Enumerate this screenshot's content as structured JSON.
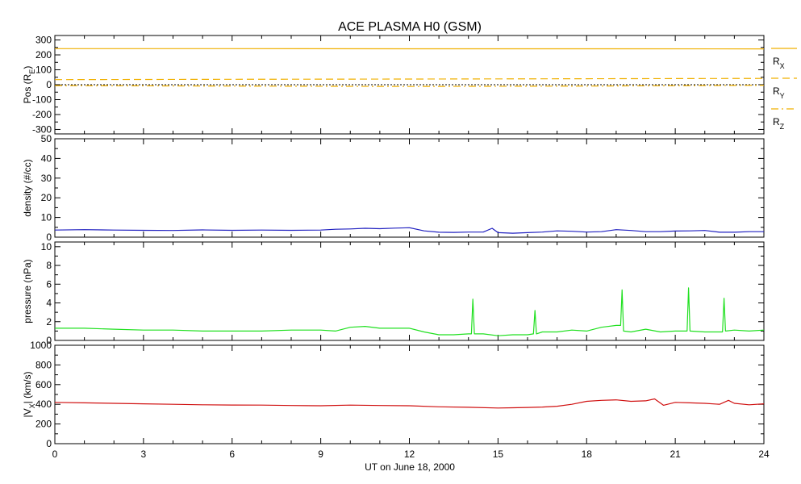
{
  "chart_data": {
    "title": "ACE PLASMA H0 (GSM)",
    "xlabel": "UT on June 18, 2000",
    "x_ticks": [
      "0",
      "3",
      "6",
      "9",
      "12",
      "15",
      "18",
      "21",
      "24"
    ],
    "xlim": [
      0,
      24
    ],
    "panels": [
      {
        "id": "pos",
        "type": "line",
        "ylabel_main": "Pos (R",
        "ylabel_sub": "E",
        "ylabel_end": ")",
        "ylim": [
          -330,
          330
        ],
        "y_ticks": [
          300,
          200,
          100,
          0,
          -100,
          -200,
          -300
        ],
        "y_tick_labels": [
          "300",
          "200",
          "100",
          "0",
          "-100",
          "-200",
          "-300"
        ],
        "zero_line": true,
        "series": [
          {
            "name_main": "R",
            "name_sub": "X",
            "color": "#f0b000",
            "dash": "solid",
            "x": [
              0,
              6,
              12,
              18,
              24
            ],
            "y": [
              242,
              242,
              241,
              241,
              240
            ]
          },
          {
            "name_main": "R",
            "name_sub": "Y",
            "color": "#f0b000",
            "dash": "dashed",
            "x": [
              0,
              6,
              12,
              18,
              24
            ],
            "y": [
              34,
              36,
              38,
              40,
              42
            ]
          },
          {
            "name_main": "R",
            "name_sub": "Z",
            "color": "#f0b000",
            "dash": "dashdot",
            "x": [
              0,
              6,
              12,
              18,
              24
            ],
            "y": [
              -6,
              -9,
              -12,
              -9,
              -4
            ]
          }
        ]
      },
      {
        "id": "density",
        "type": "line",
        "ylabel_main": "density (#/cc)",
        "ylim": [
          0,
          50
        ],
        "y_ticks": [
          0,
          10,
          20,
          30,
          40,
          50
        ],
        "y_tick_labels": [
          "0",
          "10",
          "20",
          "30",
          "40",
          "50"
        ],
        "series": [
          {
            "color": "#2020c0",
            "x": [
              0,
              1,
              2,
              3,
              4,
              5,
              6,
              7,
              8,
              9,
              9.5,
              10,
              10.5,
              11,
              11.5,
              12,
              12.5,
              13,
              13.5,
              14,
              14.5,
              14.8,
              15,
              15.5,
              16,
              16.5,
              17,
              17.5,
              18,
              18.5,
              19,
              19.5,
              20,
              20.5,
              21,
              21.5,
              22,
              22.5,
              23,
              23.5,
              24
            ],
            "y": [
              3.6,
              3.8,
              3.6,
              3.5,
              3.4,
              3.7,
              3.5,
              3.6,
              3.5,
              3.6,
              4.0,
              4.2,
              4.5,
              4.3,
              4.6,
              4.8,
              3.2,
              2.5,
              2.4,
              2.6,
              2.6,
              4.5,
              2.3,
              2.0,
              2.3,
              2.6,
              3.2,
              3.0,
              2.6,
              2.8,
              3.8,
              3.4,
              2.8,
              2.8,
              3.1,
              3.2,
              3.4,
              2.5,
              2.5,
              2.8,
              2.8
            ]
          }
        ]
      },
      {
        "id": "pressure",
        "type": "line",
        "ylabel_main": "pressure (nPa)",
        "ylim": [
          0,
          10.5
        ],
        "y_ticks": [
          0,
          2,
          4,
          6,
          8,
          10
        ],
        "y_tick_labels": [
          "0",
          "2",
          "4",
          "6",
          "8",
          "10"
        ],
        "series": [
          {
            "color": "#20e020",
            "x": [
              0,
              1,
              2,
              3,
              4,
              5,
              6,
              7,
              8,
              9,
              9.5,
              10,
              10.5,
              11,
              11.5,
              12,
              12.5,
              13,
              13.5,
              14,
              14.1,
              14.15,
              14.2,
              14.5,
              15,
              15.5,
              16,
              16.2,
              16.25,
              16.3,
              16.5,
              17,
              17.5,
              18,
              18.5,
              19,
              19.15,
              19.2,
              19.25,
              19.5,
              20,
              20.5,
              21,
              21.4,
              21.45,
              21.5,
              22,
              22.5,
              22.6,
              22.65,
              22.7,
              23,
              23.5,
              24
            ],
            "y": [
              1.3,
              1.3,
              1.2,
              1.1,
              1.1,
              1.0,
              1.0,
              1.0,
              1.1,
              1.1,
              1.0,
              1.4,
              1.5,
              1.3,
              1.3,
              1.3,
              0.9,
              0.6,
              0.6,
              0.7,
              0.7,
              4.4,
              0.7,
              0.7,
              0.5,
              0.6,
              0.6,
              0.7,
              3.2,
              0.7,
              0.9,
              0.9,
              1.1,
              1.0,
              1.4,
              1.6,
              1.6,
              5.4,
              1.0,
              0.9,
              1.2,
              0.9,
              1.0,
              1.0,
              5.6,
              1.0,
              0.9,
              0.9,
              0.9,
              4.5,
              1.0,
              1.1,
              1.0,
              1.1
            ]
          }
        ]
      },
      {
        "id": "vx",
        "type": "line",
        "ylabel_main": "|V",
        "ylabel_sub": "X",
        "ylabel_end": "| (km/s)",
        "ylim": [
          0,
          1000
        ],
        "y_ticks": [
          0,
          200,
          400,
          600,
          800,
          1000
        ],
        "y_tick_labels": [
          "0",
          "200",
          "400",
          "600",
          "800",
          "1000"
        ],
        "series": [
          {
            "color": "#d01010",
            "x": [
              0,
              1,
              2,
              3,
              4,
              5,
              6,
              7,
              8,
              9,
              10,
              11,
              12,
              13,
              14,
              15,
              15.5,
              16,
              16.5,
              17,
              17.5,
              18,
              18.5,
              19,
              19.5,
              20,
              20.3,
              20.6,
              21,
              21.5,
              22,
              22.5,
              22.8,
              23,
              23.5,
              24
            ],
            "y": [
              420,
              415,
              410,
              405,
              400,
              395,
              393,
              392,
              388,
              385,
              392,
              388,
              385,
              375,
              370,
              362,
              365,
              368,
              372,
              380,
              400,
              430,
              440,
              445,
              430,
              435,
              455,
              390,
              420,
              415,
              410,
              400,
              440,
              410,
              395,
              405
            ]
          }
        ]
      }
    ]
  }
}
